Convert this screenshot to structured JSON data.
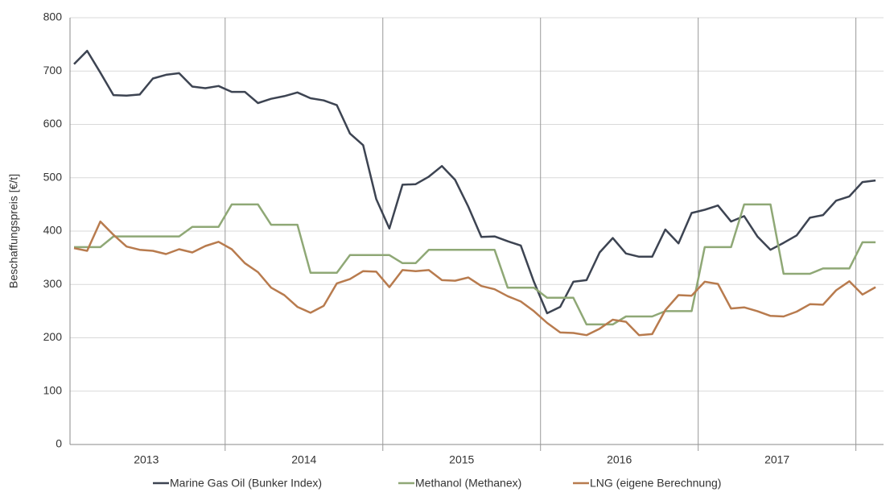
{
  "chart_data": {
    "type": "line",
    "y_label": "Beschaffungspreis [€/t]",
    "categories": [
      null,
      null,
      null,
      null,
      null,
      null,
      "2013",
      null,
      null,
      null,
      null,
      null,
      null,
      null,
      null,
      null,
      null,
      null,
      "2014",
      null,
      null,
      null,
      null,
      null,
      null,
      null,
      null,
      null,
      null,
      null,
      "2015",
      null,
      null,
      null,
      null,
      null,
      null,
      null,
      null,
      null,
      null,
      null,
      "2016",
      null,
      null,
      null,
      null,
      null,
      null,
      null,
      null,
      null,
      null,
      null,
      "2017",
      null,
      null,
      null,
      null,
      null,
      null,
      null
    ],
    "series": [
      {
        "name": "Marine Gas Oil (Bunker Index)",
        "color": "#3d4452",
        "values": [
          713,
          738,
          697,
          655,
          654,
          656,
          686,
          693,
          696,
          671,
          668,
          672,
          661,
          661,
          640,
          648,
          653,
          660,
          649,
          645,
          636,
          583,
          561,
          460,
          405,
          487,
          488,
          502,
          522,
          496,
          446,
          389,
          390,
          381,
          373,
          305,
          246,
          258,
          305,
          308,
          360,
          387,
          358,
          352,
          352,
          403,
          377,
          434,
          440,
          448,
          418,
          428,
          390,
          365,
          378,
          392,
          425,
          430,
          457,
          465,
          492,
          495
        ]
      },
      {
        "name": "Methanol (Methanex)",
        "color": "#8fa876",
        "values": [
          370,
          370,
          370,
          390,
          390,
          390,
          390,
          390,
          390,
          408,
          408,
          408,
          450,
          450,
          450,
          412,
          412,
          412,
          322,
          322,
          322,
          355,
          355,
          355,
          355,
          340,
          340,
          365,
          365,
          365,
          365,
          365,
          365,
          294,
          294,
          294,
          275,
          275,
          275,
          225,
          225,
          225,
          240,
          240,
          240,
          250,
          250,
          250,
          370,
          370,
          370,
          450,
          450,
          450,
          320,
          320,
          320,
          330,
          330,
          330,
          379,
          379
        ]
      },
      {
        "name": "LNG (eigene Berechnung)",
        "color": "#b87b4e",
        "values": [
          368,
          363,
          418,
          393,
          371,
          365,
          363,
          357,
          366,
          360,
          372,
          380,
          366,
          340,
          323,
          294,
          280,
          258,
          247,
          260,
          302,
          310,
          325,
          324,
          295,
          327,
          325,
          327,
          308,
          307,
          313,
          297,
          291,
          278,
          268,
          250,
          228,
          210,
          209,
          205,
          217,
          234,
          230,
          205,
          207,
          252,
          280,
          279,
          305,
          301,
          255,
          257,
          250,
          241,
          240,
          249,
          263,
          262,
          289,
          306,
          281,
          295
        ]
      }
    ],
    "ylim": [
      0,
      800
    ],
    "yticks": [
      0,
      100,
      200,
      300,
      400,
      500,
      600,
      700,
      800
    ],
    "grid": true,
    "legend": "bottom"
  }
}
